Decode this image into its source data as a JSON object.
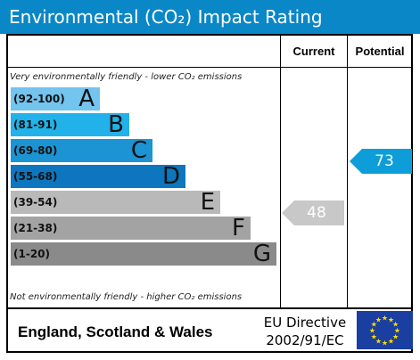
{
  "title": "Environmental (CO₂) Impact Rating",
  "headers": {
    "current": "Current",
    "potential": "Potential"
  },
  "notes": {
    "top": "Very environmentally friendly - lower CO₂ emissions",
    "bottom": "Not environmentally friendly - higher CO₂ emissions"
  },
  "footer": {
    "region": "England, Scotland & Wales",
    "directive_line1": "EU Directive",
    "directive_line2": "2002/91/EC"
  },
  "chart_data": {
    "type": "table",
    "bands": [
      {
        "range": "(92-100)",
        "letter": "A",
        "color": "#73c4ee"
      },
      {
        "range": "(81-91)",
        "letter": "B",
        "color": "#22b1e8"
      },
      {
        "range": "(69-80)",
        "letter": "C",
        "color": "#1c93d2"
      },
      {
        "range": "(55-68)",
        "letter": "D",
        "color": "#0d76be"
      },
      {
        "range": "(39-54)",
        "letter": "E",
        "color": "#b9b9b9"
      },
      {
        "range": "(21-38)",
        "letter": "F",
        "color": "#a3a3a3"
      },
      {
        "range": "(1-20)",
        "letter": "G",
        "color": "#8a8a8a"
      }
    ],
    "current": {
      "value": "48",
      "band": "E",
      "color": "#c8c8c8"
    },
    "potential": {
      "value": "73",
      "band": "C",
      "color": "#0d9ed9"
    }
  }
}
